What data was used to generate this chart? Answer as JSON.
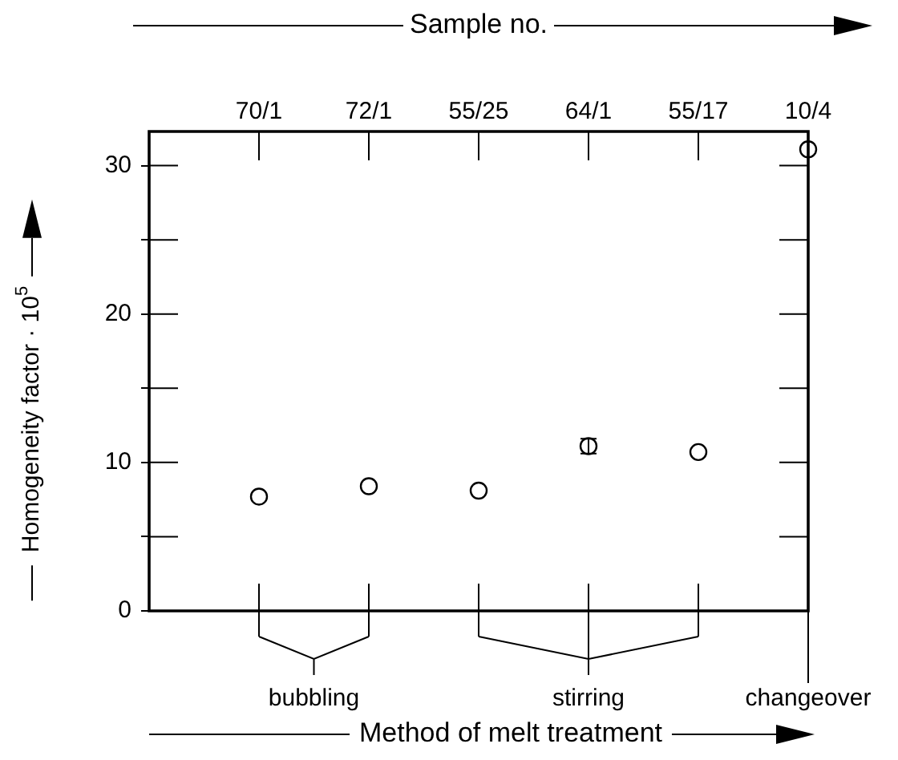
{
  "chart_data": {
    "type": "scatter",
    "x2label": "Sample no.",
    "xlabel": "Method of melt treatment",
    "ylabel": "Homogeneity factor · 10$^{5}$",
    "categories": [
      "70/1",
      "72/1",
      "55/25",
      "64/1",
      "55/17",
      "10/4"
    ],
    "values": [
      7.7,
      8.4,
      8.1,
      11.1,
      10.7,
      31.1
    ],
    "errors": [
      null,
      null,
      null,
      0.5,
      null,
      null
    ],
    "color": "#000000",
    "marker": "circle",
    "grid": false,
    "legend": false,
    "ylim": [
      0,
      32.3
    ],
    "yticks": [
      0,
      {
        "value": 5,
        "label": null
      },
      10,
      {
        "value": 15,
        "label": null
      },
      20,
      {
        "value": 25,
        "label": null
      },
      30
    ],
    "annotations": [
      "bubbling",
      "stirring",
      "changeover"
    ]
  }
}
